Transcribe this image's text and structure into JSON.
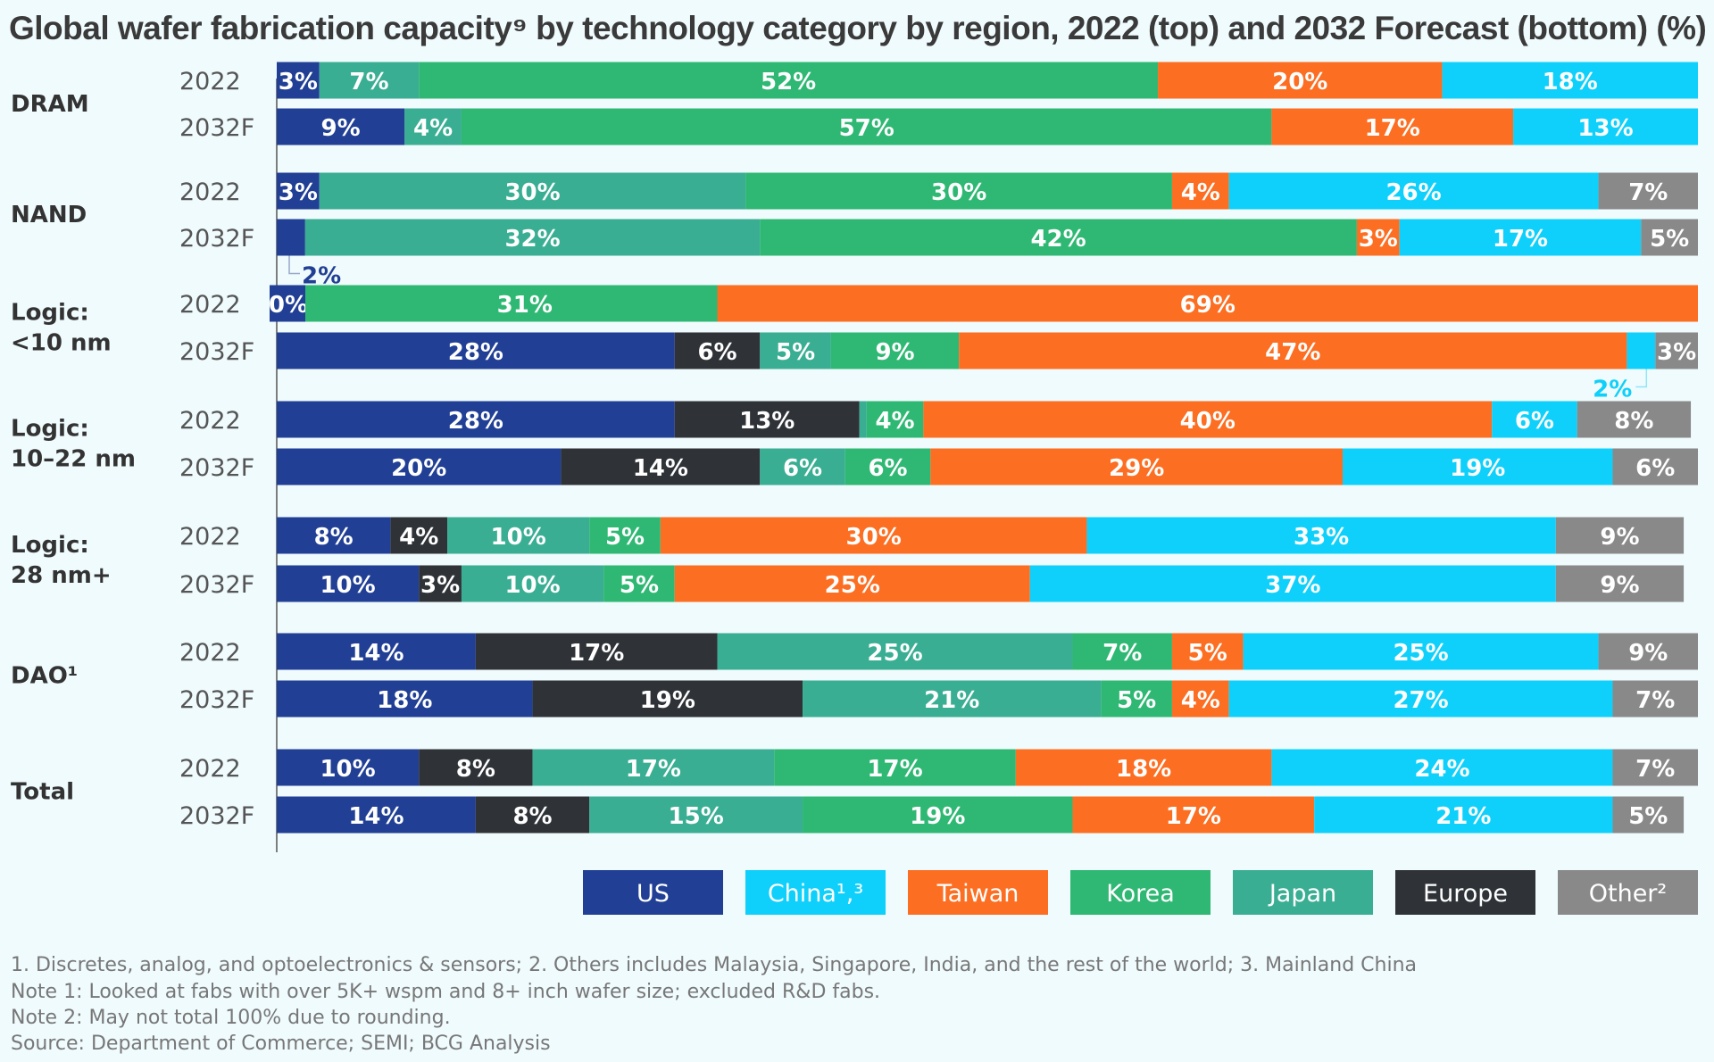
{
  "title": "Global wafer fabrication capacity⁹ by technology category by region, 2022 (top) and 2032 Forecast (bottom) (%)",
  "colors": {
    "US": "#213f94",
    "Europe": "#2f3338",
    "Japan": "#3aae93",
    "Korea": "#2fb873",
    "Taiwan": "#fc6e22",
    "China": "#0fd0fa",
    "Other": "#898989"
  },
  "legend": [
    {
      "key": "US",
      "label": "US"
    },
    {
      "key": "China",
      "label": "China¹,³"
    },
    {
      "key": "Taiwan",
      "label": "Taiwan"
    },
    {
      "key": "Korea",
      "label": "Korea"
    },
    {
      "key": "Japan",
      "label": "Japan"
    },
    {
      "key": "Europe",
      "label": "Europe"
    },
    {
      "key": "Other",
      "label": "Other²"
    }
  ],
  "chart_data": {
    "type": "bar",
    "orientation": "horizontal",
    "stacked": true,
    "unit": "%",
    "region_order": [
      "US",
      "Europe",
      "Japan",
      "Korea",
      "Taiwan",
      "China",
      "Other"
    ],
    "groups": [
      {
        "label": [
          "DRAM"
        ],
        "rows": [
          {
            "year": "2022",
            "segments": [
              {
                "region": "US",
                "value": 3,
                "label": "3%"
              },
              {
                "region": "Japan",
                "value": 7,
                "label": "7%"
              },
              {
                "region": "Korea",
                "value": 52,
                "label": "52%"
              },
              {
                "region": "Taiwan",
                "value": 20,
                "label": "20%"
              },
              {
                "region": "China",
                "value": 18,
                "label": "18%"
              }
            ]
          },
          {
            "year": "2032F",
            "segments": [
              {
                "region": "US",
                "value": 9,
                "label": "9%"
              },
              {
                "region": "Japan",
                "value": 4,
                "label": "4%"
              },
              {
                "region": "Korea",
                "value": 57,
                "label": "57%"
              },
              {
                "region": "Taiwan",
                "value": 17,
                "label": "17%"
              },
              {
                "region": "China",
                "value": 13,
                "label": "13%"
              }
            ]
          }
        ]
      },
      {
        "label": [
          "NAND"
        ],
        "rows": [
          {
            "year": "2022",
            "segments": [
              {
                "region": "US",
                "value": 3,
                "label": "3%"
              },
              {
                "region": "Japan",
                "value": 30,
                "label": "30%"
              },
              {
                "region": "Korea",
                "value": 30,
                "label": "30%"
              },
              {
                "region": "Taiwan",
                "value": 4,
                "label": "4%"
              },
              {
                "region": "China",
                "value": 26,
                "label": "26%"
              },
              {
                "region": "Other",
                "value": 7,
                "label": "7%"
              }
            ]
          },
          {
            "year": "2032F",
            "segments": [
              {
                "region": "US",
                "value": 2,
                "label": "",
                "callout": "2%"
              },
              {
                "region": "Japan",
                "value": 32,
                "label": "32%"
              },
              {
                "region": "Korea",
                "value": 42,
                "label": "42%"
              },
              {
                "region": "Taiwan",
                "value": 3,
                "label": "3%"
              },
              {
                "region": "China",
                "value": 17,
                "label": "17%"
              },
              {
                "region": "Other",
                "value": 5,
                "label": "5%"
              }
            ]
          }
        ]
      },
      {
        "label": [
          "Logic:",
          "<10 nm"
        ],
        "rows": [
          {
            "year": "2022",
            "segments": [
              {
                "region": "US",
                "value": 0,
                "label": "0%"
              },
              {
                "region": "Korea",
                "value": 31,
                "label": "31%"
              },
              {
                "region": "Taiwan",
                "value": 69,
                "label": "69%"
              }
            ]
          },
          {
            "year": "2032F",
            "segments": [
              {
                "region": "US",
                "value": 28,
                "label": "28%"
              },
              {
                "region": "Europe",
                "value": 6,
                "label": "6%"
              },
              {
                "region": "Japan",
                "value": 5,
                "label": "5%"
              },
              {
                "region": "Korea",
                "value": 9,
                "label": "9%"
              },
              {
                "region": "Taiwan",
                "value": 47,
                "label": "47%"
              },
              {
                "region": "China",
                "value": 2,
                "label": "",
                "callout": "2%"
              },
              {
                "region": "Other",
                "value": 3,
                "label": "3%"
              }
            ]
          }
        ]
      },
      {
        "label": [
          "Logic:",
          "10–22 nm"
        ],
        "rows": [
          {
            "year": "2022",
            "segments": [
              {
                "region": "US",
                "value": 28,
                "label": "28%"
              },
              {
                "region": "Europe",
                "value": 13,
                "label": "13%"
              },
              {
                "region": "Japan",
                "value": 0.5,
                "label": ""
              },
              {
                "region": "Korea",
                "value": 4,
                "label": "4%"
              },
              {
                "region": "Taiwan",
                "value": 40,
                "label": "40%"
              },
              {
                "region": "China",
                "value": 6,
                "label": "6%"
              },
              {
                "region": "Other",
                "value": 8,
                "label": "8%"
              }
            ]
          },
          {
            "year": "2032F",
            "segments": [
              {
                "region": "US",
                "value": 20,
                "label": "20%"
              },
              {
                "region": "Europe",
                "value": 14,
                "label": "14%"
              },
              {
                "region": "Japan",
                "value": 6,
                "label": "6%"
              },
              {
                "region": "Korea",
                "value": 6,
                "label": "6%"
              },
              {
                "region": "Taiwan",
                "value": 29,
                "label": "29%"
              },
              {
                "region": "China",
                "value": 19,
                "label": "19%"
              },
              {
                "region": "Other",
                "value": 6,
                "label": "6%"
              }
            ]
          }
        ]
      },
      {
        "label": [
          "Logic:",
          "28 nm+"
        ],
        "rows": [
          {
            "year": "2022",
            "segments": [
              {
                "region": "US",
                "value": 8,
                "label": "8%"
              },
              {
                "region": "Europe",
                "value": 4,
                "label": "4%"
              },
              {
                "region": "Japan",
                "value": 10,
                "label": "10%"
              },
              {
                "region": "Korea",
                "value": 5,
                "label": "5%"
              },
              {
                "region": "Taiwan",
                "value": 30,
                "label": "30%"
              },
              {
                "region": "China",
                "value": 33,
                "label": "33%"
              },
              {
                "region": "Other",
                "value": 9,
                "label": "9%"
              }
            ]
          },
          {
            "year": "2032F",
            "segments": [
              {
                "region": "US",
                "value": 10,
                "label": "10%"
              },
              {
                "region": "Europe",
                "value": 3,
                "label": "3%"
              },
              {
                "region": "Japan",
                "value": 10,
                "label": "10%"
              },
              {
                "region": "Korea",
                "value": 5,
                "label": "5%"
              },
              {
                "region": "Taiwan",
                "value": 25,
                "label": "25%"
              },
              {
                "region": "China",
                "value": 37,
                "label": "37%"
              },
              {
                "region": "Other",
                "value": 9,
                "label": "9%"
              }
            ]
          }
        ]
      },
      {
        "label": [
          "DAO¹"
        ],
        "rows": [
          {
            "year": "2022",
            "segments": [
              {
                "region": "US",
                "value": 14,
                "label": "14%"
              },
              {
                "region": "Europe",
                "value": 17,
                "label": "17%"
              },
              {
                "region": "Japan",
                "value": 25,
                "label": "25%"
              },
              {
                "region": "Korea",
                "value": 7,
                "label": "7%"
              },
              {
                "region": "Taiwan",
                "value": 5,
                "label": "5%"
              },
              {
                "region": "China",
                "value": 25,
                "label": "25%"
              },
              {
                "region": "Other",
                "value": 9,
                "label": "9%"
              }
            ]
          },
          {
            "year": "2032F",
            "segments": [
              {
                "region": "US",
                "value": 18,
                "label": "18%"
              },
              {
                "region": "Europe",
                "value": 19,
                "label": "19%"
              },
              {
                "region": "Japan",
                "value": 21,
                "label": "21%"
              },
              {
                "region": "Korea",
                "value": 5,
                "label": "5%"
              },
              {
                "region": "Taiwan",
                "value": 4,
                "label": "4%"
              },
              {
                "region": "China",
                "value": 27,
                "label": "27%"
              },
              {
                "region": "Other",
                "value": 7,
                "label": "7%"
              }
            ]
          }
        ]
      },
      {
        "label": [
          "Total"
        ],
        "rows": [
          {
            "year": "2022",
            "segments": [
              {
                "region": "US",
                "value": 10,
                "label": "10%"
              },
              {
                "region": "Europe",
                "value": 8,
                "label": "8%"
              },
              {
                "region": "Japan",
                "value": 17,
                "label": "17%"
              },
              {
                "region": "Korea",
                "value": 17,
                "label": "17%"
              },
              {
                "region": "Taiwan",
                "value": 18,
                "label": "18%"
              },
              {
                "region": "China",
                "value": 24,
                "label": "24%"
              },
              {
                "region": "Other",
                "value": 7,
                "label": "7%"
              }
            ]
          },
          {
            "year": "2032F",
            "segments": [
              {
                "region": "US",
                "value": 14,
                "label": "14%"
              },
              {
                "region": "Europe",
                "value": 8,
                "label": "8%"
              },
              {
                "region": "Japan",
                "value": 15,
                "label": "15%"
              },
              {
                "region": "Korea",
                "value": 19,
                "label": "19%"
              },
              {
                "region": "Taiwan",
                "value": 17,
                "label": "17%"
              },
              {
                "region": "China",
                "value": 21,
                "label": "21%"
              },
              {
                "region": "Other",
                "value": 5,
                "label": "5%"
              }
            ]
          }
        ]
      }
    ]
  },
  "footnotes": [
    "1. Discretes, analog, and optoelectronics & sensors; 2. Others includes Malaysia, Singapore, India, and the rest of the world; 3. Mainland China",
    "Note 1: Looked at fabs with over 5K+ wspm and 8+ inch wafer size; excluded R&D fabs.",
    "Note 2: May not total 100% due to rounding.",
    "Source: Department of Commerce; SEMI; BCG Analysis"
  ]
}
